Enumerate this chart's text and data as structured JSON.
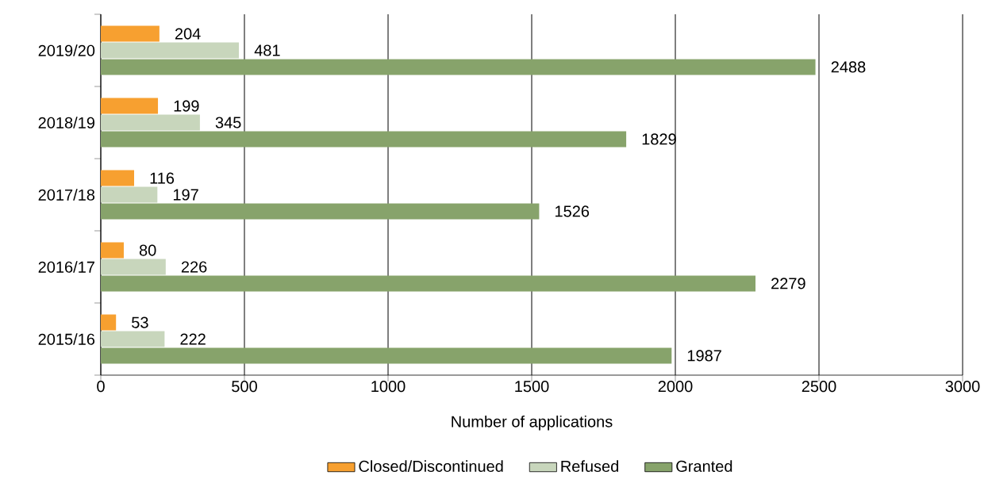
{
  "chart_data": {
    "type": "bar",
    "orientation": "horizontal",
    "xlabel": "Number of applications",
    "categories": [
      "2019/20",
      "2018/19",
      "2017/18",
      "2016/17",
      "2015/16"
    ],
    "series": [
      {
        "name": "Closed/Discontinued",
        "color": "#f7a030",
        "values": [
          204,
          199,
          116,
          80,
          53
        ]
      },
      {
        "name": "Refused",
        "color": "#c8d6bc",
        "values": [
          481,
          345,
          197,
          226,
          222
        ]
      },
      {
        "name": "Granted",
        "color": "#87a36b",
        "values": [
          2488,
          1829,
          1526,
          2279,
          1987
        ]
      }
    ],
    "xlim": [
      0,
      3000
    ],
    "xticks": [
      0,
      500,
      1000,
      1500,
      2000,
      2500,
      3000
    ],
    "grid": "x",
    "legend": "bottom",
    "data_labels": true
  }
}
